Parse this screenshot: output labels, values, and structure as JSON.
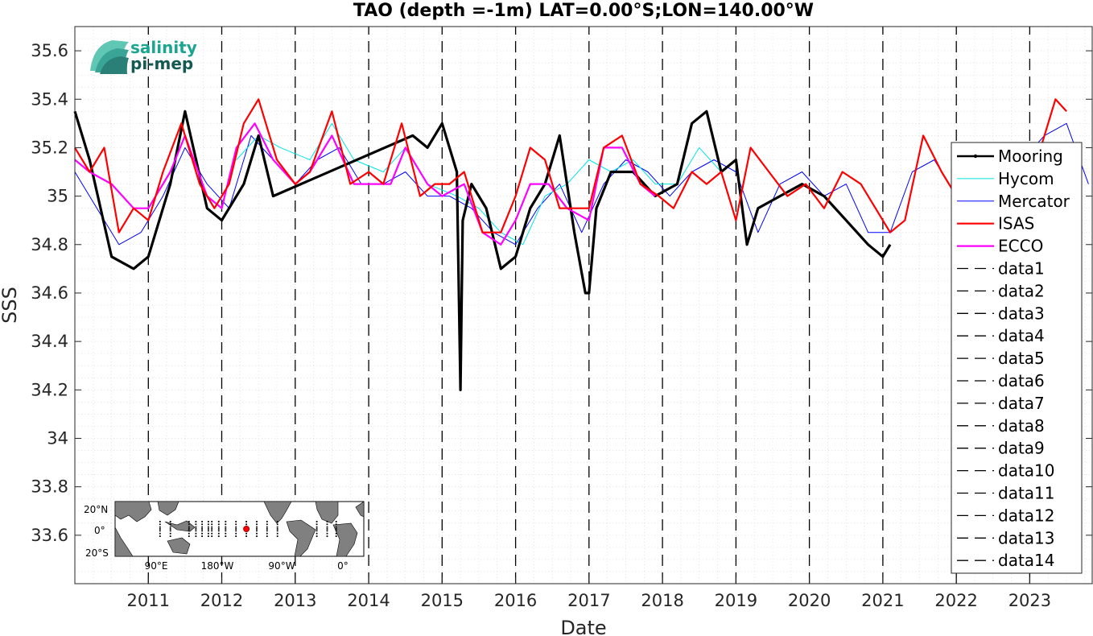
{
  "chart_data": {
    "type": "line",
    "title": "TAO (depth =-1m) LAT=0.00°S;LON=140.00°W",
    "xlabel": "Date",
    "ylabel": "SSS",
    "xlim": [
      2010.0,
      2023.85
    ],
    "ylim": [
      33.4,
      35.7
    ],
    "x_ticks": [
      2011,
      2012,
      2013,
      2014,
      2015,
      2016,
      2017,
      2018,
      2019,
      2020,
      2021,
      2022,
      2023
    ],
    "x_tick_labels": [
      "2011",
      "2012",
      "2013",
      "2014",
      "2015",
      "2016",
      "2017",
      "2018",
      "2019",
      "2020",
      "2021",
      "2022",
      "2023"
    ],
    "y_ticks": [
      33.6,
      33.8,
      34,
      34.2,
      34.4,
      34.6,
      34.8,
      35,
      35.2,
      35.4,
      35.6
    ],
    "y_tick_labels": [
      "33.6",
      "33.8",
      "34",
      "34.2",
      "34.4",
      "34.6",
      "34.8",
      "35",
      "35.2",
      "35.4",
      "35.6"
    ],
    "grid": "dotted minor grid",
    "legend_position": "right",
    "series": [
      {
        "name": "Mooring",
        "color": "#000000",
        "style": "solid-thick",
        "x": [
          2010.0,
          2010.2,
          2010.5,
          2010.8,
          2011.0,
          2011.3,
          2011.5,
          2011.8,
          2012.0,
          2012.3,
          2012.5,
          2012.7,
          2014.6,
          2014.8,
          2015.0,
          2015.2,
          2015.25,
          2015.28,
          2015.4,
          2015.6,
          2015.8,
          2016.0,
          2016.2,
          2016.4,
          2016.6,
          2016.8,
          2016.95,
          2017.0,
          2017.1,
          2017.3,
          2017.6,
          2017.9,
          2018.2,
          2018.4,
          2018.6,
          2018.8,
          2019.0,
          2019.15,
          2019.3,
          2019.6,
          2019.9,
          2020.2,
          2020.5,
          2020.8,
          2021.0,
          2021.1
        ],
        "y": [
          35.35,
          35.15,
          34.75,
          34.7,
          34.75,
          35.05,
          35.35,
          34.95,
          34.9,
          35.05,
          35.25,
          35.0,
          35.25,
          35.2,
          35.3,
          35.1,
          34.2,
          34.9,
          35.05,
          34.95,
          34.7,
          34.75,
          34.95,
          35.05,
          35.25,
          34.85,
          34.6,
          34.6,
          34.95,
          35.1,
          35.1,
          35.0,
          35.05,
          35.3,
          35.35,
          35.1,
          35.15,
          34.8,
          34.95,
          35.0,
          35.05,
          35.0,
          34.9,
          34.8,
          34.75,
          34.8
        ]
      },
      {
        "name": "Hycom",
        "color": "#00e5e5",
        "style": "solid-thin",
        "x": [
          2012.2,
          2012.5,
          2012.8,
          2013.2,
          2013.5,
          2013.8,
          2014.2,
          2014.5,
          2014.8,
          2015.2,
          2015.5,
          2015.8,
          2016.1,
          2016.4,
          2016.7,
          2017.0,
          2017.3,
          2017.6,
          2017.9,
          2018.2,
          2018.5,
          2018.8
        ],
        "y": [
          35.15,
          35.25,
          35.2,
          35.15,
          35.3,
          35.15,
          35.1,
          35.2,
          35.05,
          35.0,
          34.95,
          34.85,
          34.8,
          35.0,
          35.05,
          35.15,
          35.1,
          35.15,
          35.05,
          35.05,
          35.2,
          35.1
        ]
      },
      {
        "name": "Mercator",
        "color": "#0000ff",
        "style": "solid-thin",
        "x": [
          2010.0,
          2010.3,
          2010.6,
          2010.9,
          2011.2,
          2011.5,
          2011.8,
          2012.1,
          2012.4,
          2012.7,
          2013.0,
          2013.3,
          2013.6,
          2013.9,
          2014.2,
          2014.5,
          2014.8,
          2015.1,
          2015.4,
          2015.7,
          2016.0,
          2016.3,
          2016.6,
          2016.9,
          2017.2,
          2017.5,
          2017.8,
          2018.1,
          2018.4,
          2018.7,
          2019.0,
          2019.3,
          2019.6,
          2019.9,
          2020.2,
          2020.5,
          2020.8,
          2021.1,
          2021.4,
          2021.7,
          2022.0,
          2022.3,
          2022.6,
          2022.9,
          2023.2,
          2023.5,
          2023.8
        ],
        "y": [
          35.1,
          34.95,
          34.8,
          34.85,
          35.0,
          35.2,
          35.05,
          34.95,
          35.25,
          35.15,
          35.05,
          35.15,
          35.2,
          35.05,
          35.05,
          35.1,
          35.0,
          35.0,
          34.95,
          34.85,
          34.8,
          34.95,
          35.05,
          34.85,
          35.05,
          35.15,
          35.1,
          35.0,
          35.1,
          35.15,
          35.1,
          34.85,
          35.05,
          35.1,
          35.0,
          35.05,
          34.85,
          34.85,
          35.1,
          35.15,
          35.0,
          35.1,
          35.15,
          35.15,
          35.25,
          35.3,
          35.05
        ]
      },
      {
        "name": "ISAS",
        "color": "#ff0000",
        "style": "solid-medium",
        "x": [
          2010.0,
          2010.2,
          2010.4,
          2010.6,
          2010.8,
          2011.0,
          2011.2,
          2011.45,
          2011.7,
          2011.9,
          2012.1,
          2012.3,
          2012.5,
          2012.75,
          2013.0,
          2013.2,
          2013.5,
          2013.75,
          2014.0,
          2014.2,
          2014.45,
          2014.7,
          2014.9,
          2015.1,
          2015.3,
          2015.55,
          2015.8,
          2016.0,
          2016.2,
          2016.4,
          2016.6,
          2016.8,
          2017.0,
          2017.2,
          2017.45,
          2017.7,
          2017.95,
          2018.15,
          2018.4,
          2018.6,
          2018.8,
          2019.0,
          2019.2,
          2019.45,
          2019.7,
          2019.95,
          2020.2,
          2020.45,
          2020.7,
          2020.9,
          2021.1,
          2021.3,
          2021.55,
          2021.8,
          2022.0,
          2022.2,
          2022.5,
          2022.75,
          2023.0,
          2023.15,
          2023.35,
          2023.5
        ],
        "y": [
          35.2,
          35.1,
          35.2,
          34.85,
          34.95,
          34.9,
          35.1,
          35.3,
          35.05,
          34.95,
          35.05,
          35.3,
          35.4,
          35.15,
          35.05,
          35.1,
          35.35,
          35.05,
          35.1,
          35.05,
          35.3,
          35.0,
          35.05,
          35.05,
          35.1,
          34.85,
          34.85,
          35.0,
          35.2,
          35.15,
          34.95,
          34.95,
          34.95,
          35.2,
          35.25,
          35.05,
          35.0,
          34.95,
          35.1,
          35.05,
          35.1,
          34.9,
          35.2,
          35.1,
          35.0,
          35.05,
          34.95,
          35.1,
          35.05,
          34.95,
          34.85,
          34.9,
          35.25,
          35.1,
          35.0,
          34.95,
          35.0,
          35.05,
          35.1,
          35.2,
          35.4,
          35.35
        ]
      },
      {
        "name": "ECCO",
        "color": "#ff00ff",
        "style": "solid-medium",
        "x": [
          2010.0,
          2010.2,
          2010.5,
          2010.8,
          2011.0,
          2011.3,
          2011.5,
          2011.8,
          2012.0,
          2012.2,
          2012.45,
          2012.7,
          2013.0,
          2013.2,
          2013.5,
          2013.8,
          2014.0,
          2014.3,
          2014.5,
          2014.8,
          2015.0,
          2015.3,
          2015.55,
          2015.8,
          2016.0,
          2016.2,
          2016.45,
          2016.7,
          2017.0,
          2017.2,
          2017.45,
          2017.7,
          2017.9
        ],
        "y": [
          35.15,
          35.1,
          35.05,
          34.95,
          34.95,
          35.1,
          35.25,
          35.0,
          34.95,
          35.2,
          35.3,
          35.15,
          35.05,
          35.1,
          35.25,
          35.05,
          35.05,
          35.05,
          35.2,
          35.05,
          35.0,
          35.05,
          34.85,
          34.8,
          34.9,
          35.05,
          35.05,
          34.95,
          34.9,
          35.2,
          35.2,
          35.05,
          35.0
        ]
      },
      {
        "name": "data1",
        "color": "#000000",
        "style": "dashed",
        "x": [
          2011,
          2011
        ],
        "y": [
          33.4,
          35.7
        ]
      },
      {
        "name": "data2",
        "color": "#000000",
        "style": "dashed",
        "x": [
          2012,
          2012
        ],
        "y": [
          33.4,
          35.7
        ]
      },
      {
        "name": "data3",
        "color": "#000000",
        "style": "dashed",
        "x": [
          2013,
          2013
        ],
        "y": [
          33.4,
          35.7
        ]
      },
      {
        "name": "data4",
        "color": "#000000",
        "style": "dashed",
        "x": [
          2014,
          2014
        ],
        "y": [
          33.4,
          35.7
        ]
      },
      {
        "name": "data5",
        "color": "#000000",
        "style": "dashed",
        "x": [
          2015,
          2015
        ],
        "y": [
          33.4,
          35.7
        ]
      },
      {
        "name": "data6",
        "color": "#000000",
        "style": "dashed",
        "x": [
          2016,
          2016
        ],
        "y": [
          33.4,
          35.7
        ]
      },
      {
        "name": "data7",
        "color": "#000000",
        "style": "dashed",
        "x": [
          2017,
          2017
        ],
        "y": [
          33.4,
          35.7
        ]
      },
      {
        "name": "data8",
        "color": "#000000",
        "style": "dashed",
        "x": [
          2018,
          2018
        ],
        "y": [
          33.4,
          35.7
        ]
      },
      {
        "name": "data9",
        "color": "#000000",
        "style": "dashed",
        "x": [
          2019,
          2019
        ],
        "y": [
          33.4,
          35.7
        ]
      },
      {
        "name": "data10",
        "color": "#000000",
        "style": "dashed",
        "x": [
          2020,
          2020
        ],
        "y": [
          33.4,
          35.7
        ]
      },
      {
        "name": "data11",
        "color": "#000000",
        "style": "dashed",
        "x": [
          2021,
          2021
        ],
        "y": [
          33.4,
          35.7
        ]
      },
      {
        "name": "data12",
        "color": "#000000",
        "style": "dashed",
        "x": [
          2022,
          2022
        ],
        "y": [
          33.4,
          35.7
        ]
      },
      {
        "name": "data13",
        "color": "#000000",
        "style": "dashed",
        "x": [
          2023,
          2023
        ],
        "y": [
          33.4,
          35.7
        ]
      },
      {
        "name": "data14",
        "color": "#000000",
        "style": "dashed",
        "x": [],
        "y": []
      }
    ]
  },
  "logo": {
    "line1": "salinity",
    "line2": "pi-mep"
  },
  "inset_map": {
    "lat_labels": [
      "20°N",
      "0°",
      "20°S"
    ],
    "lon_labels": [
      "90°E",
      "180°W",
      "90°W",
      "0°"
    ],
    "marker": {
      "lat": 0.0,
      "lon": -140.0,
      "color": "#ff0000"
    }
  }
}
